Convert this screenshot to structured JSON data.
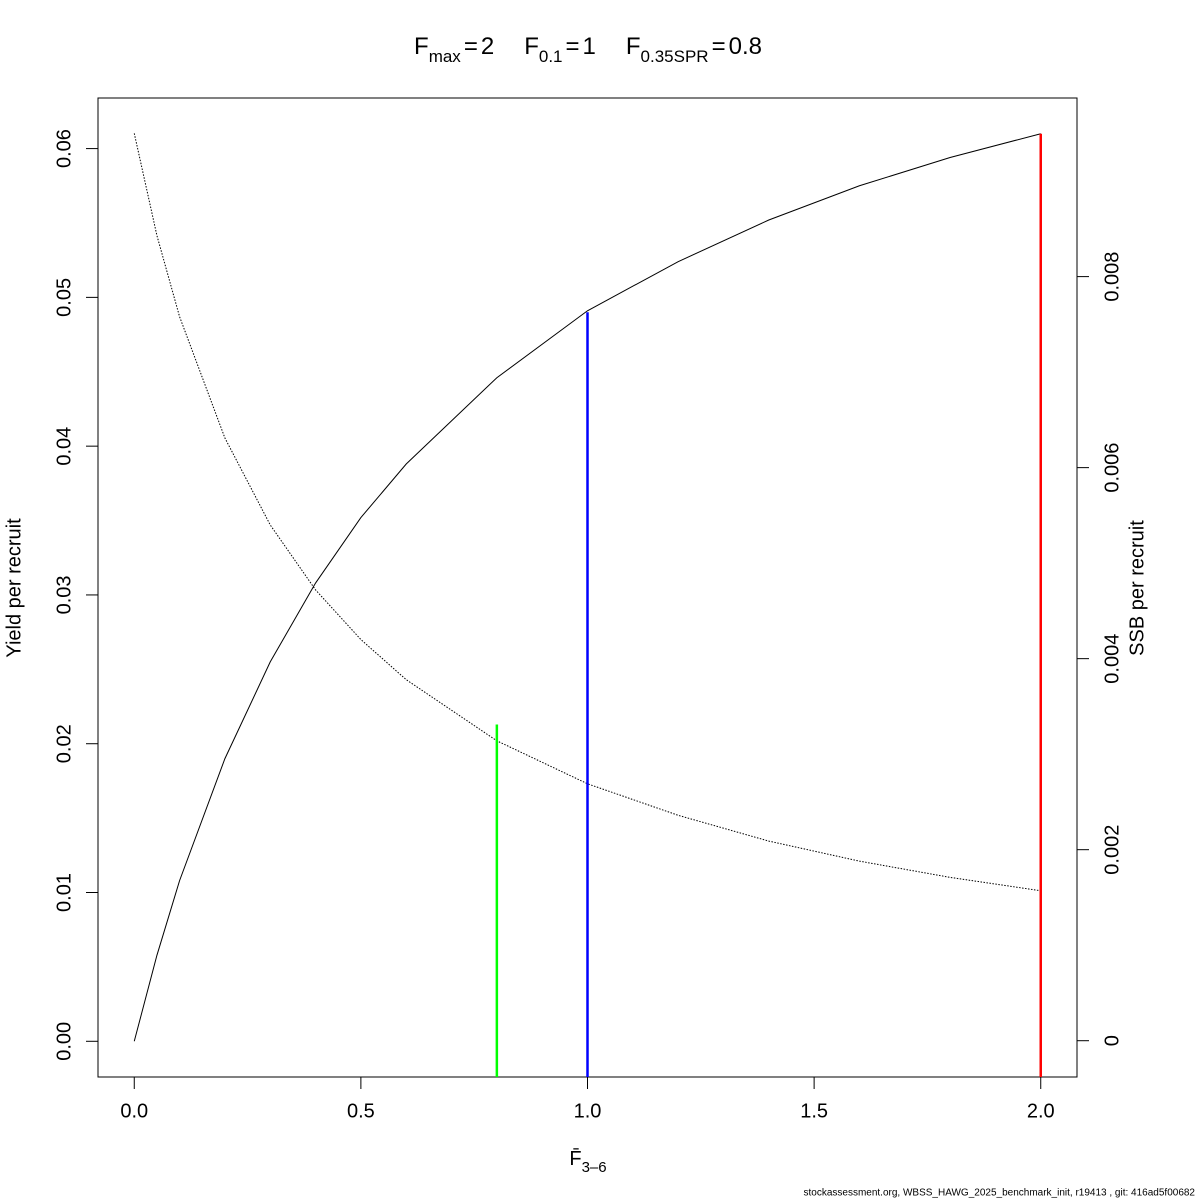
{
  "chart_data": {
    "type": "line",
    "title": [
      {
        "label": "F",
        "subscript": "max",
        "relation": "=",
        "value": 2
      },
      {
        "label": "F",
        "subscript": "0.1",
        "relation": "=",
        "value": 1
      },
      {
        "label": "F",
        "subscript": "0.35SPR",
        "relation": "=",
        "value": 0.8
      }
    ],
    "x_label": {
      "text": "F̄",
      "subscript": "3–6"
    },
    "y_label": "Yield per recruit",
    "y2_label": "SSB per recruit",
    "footer": "stockassessment.org, WBSS_HAWG_2025_benchmark_init, r19413 , git: 416ad5f00682",
    "x": [
      0,
      0.05,
      0.1,
      0.2,
      0.3,
      0.4,
      0.5,
      0.6,
      0.8,
      1.0,
      1.2,
      1.4,
      1.6,
      1.8,
      2.0
    ],
    "series": [
      {
        "color": "#000000",
        "dash": "solid",
        "axis": "y",
        "values": [
          0,
          0.00578,
          0.0108,
          0.019,
          0.0255,
          0.0308,
          0.0352,
          0.0388,
          0.0446,
          0.0491,
          0.0524,
          0.0552,
          0.0575,
          0.0594,
          0.061
        ]
      },
      {
        "color": "#000000",
        "dash": "dotted",
        "axis": "y2",
        "values": [
          0.0095,
          0.00843,
          0.00758,
          0.00631,
          0.0054,
          0.00472,
          0.0042,
          0.00378,
          0.00314,
          0.00269,
          0.00236,
          0.00209,
          0.00188,
          0.00171,
          0.00157
        ]
      }
    ],
    "reference_lines": [
      {
        "x": 0.8,
        "top": 0.00331,
        "axis": "y2",
        "color": "#00ff00"
      },
      {
        "x": 1,
        "top": 0.049,
        "axis": "y",
        "color": "#0000ff"
      },
      {
        "x": 2,
        "top": 0.061,
        "axis": "y",
        "color": "#ff0000"
      }
    ],
    "xlim": [
      -0.08,
      2.08
    ],
    "xticks": [
      {
        "value": 0,
        "label": "0.0"
      },
      0.5,
      {
        "value": 1,
        "label": "1.0"
      },
      1.5,
      {
        "value": 2,
        "label": "2.0"
      }
    ],
    "ylim": [
      -0.0024,
      0.0634
    ],
    "yticks": [
      {
        "value": 0,
        "label": "0.00"
      },
      0.01,
      0.02,
      0.03,
      0.04,
      0.05,
      0.06
    ],
    "y2lim": [
      -0.00038,
      0.00987
    ],
    "y2ticks": [
      0,
      0.002,
      0.004,
      0.006,
      0.008
    ],
    "grid": false
  }
}
